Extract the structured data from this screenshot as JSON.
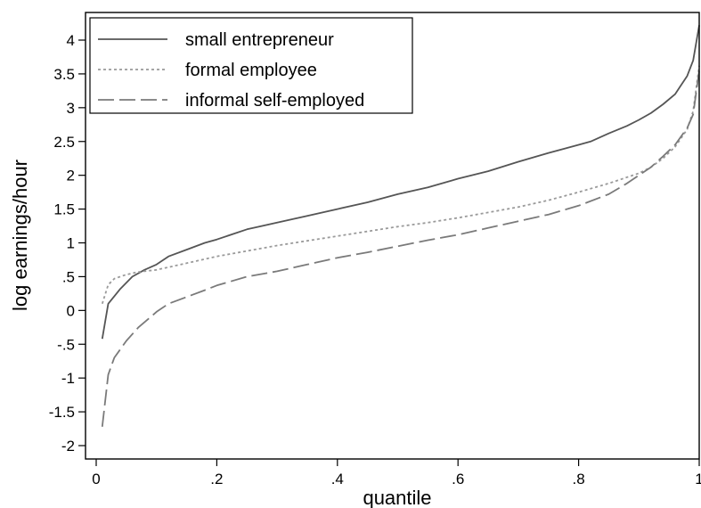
{
  "chart_data": {
    "type": "line",
    "xlabel": "quantile",
    "ylabel": "log earnings/hour",
    "xlim": [
      0,
      1
    ],
    "ylim": [
      -2.2,
      4.45
    ],
    "x_ticks": [
      0,
      0.2,
      0.4,
      0.6,
      0.8,
      1
    ],
    "x_tick_labels": [
      "0",
      ".2",
      ".4",
      ".6",
      ".8",
      "1"
    ],
    "y_ticks": [
      -2,
      -1.5,
      -1,
      -0.5,
      0,
      0.5,
      1,
      1.5,
      2,
      2.5,
      3,
      3.5,
      4
    ],
    "y_tick_labels": [
      "-2",
      "-1.5",
      "-1",
      "-.5",
      "0",
      ".5",
      "1",
      "1.5",
      "2",
      "2.5",
      "3",
      "3.5",
      "4"
    ],
    "grid": false,
    "legend_position": "top-left",
    "series": [
      {
        "name": "small entrepreneur",
        "style": "solid",
        "color": "#555555",
        "x": [
          0.01,
          0.02,
          0.04,
          0.06,
          0.08,
          0.1,
          0.12,
          0.15,
          0.18,
          0.2,
          0.25,
          0.3,
          0.35,
          0.4,
          0.45,
          0.5,
          0.55,
          0.6,
          0.65,
          0.7,
          0.75,
          0.8,
          0.82,
          0.85,
          0.88,
          0.9,
          0.92,
          0.94,
          0.96,
          0.98,
          0.99,
          1.0
        ],
        "y": [
          -0.42,
          0.1,
          0.32,
          0.5,
          0.6,
          0.68,
          0.8,
          0.9,
          1.0,
          1.05,
          1.2,
          1.3,
          1.4,
          1.5,
          1.6,
          1.72,
          1.82,
          1.95,
          2.06,
          2.2,
          2.33,
          2.45,
          2.5,
          2.62,
          2.73,
          2.82,
          2.92,
          3.05,
          3.2,
          3.47,
          3.7,
          4.22
        ]
      },
      {
        "name": "formal employee",
        "style": "dotted",
        "color": "#9a9a9a",
        "x": [
          0.01,
          0.02,
          0.03,
          0.05,
          0.07,
          0.1,
          0.15,
          0.2,
          0.25,
          0.3,
          0.35,
          0.4,
          0.45,
          0.5,
          0.55,
          0.6,
          0.65,
          0.7,
          0.75,
          0.8,
          0.85,
          0.9,
          0.92,
          0.94,
          0.96,
          0.98,
          0.99,
          1.0
        ],
        "y": [
          0.1,
          0.38,
          0.47,
          0.53,
          0.57,
          0.6,
          0.7,
          0.8,
          0.88,
          0.96,
          1.03,
          1.1,
          1.17,
          1.24,
          1.3,
          1.37,
          1.45,
          1.53,
          1.63,
          1.75,
          1.88,
          2.03,
          2.12,
          2.25,
          2.42,
          2.68,
          2.95,
          3.62
        ]
      },
      {
        "name": "informal self-employed",
        "style": "dashed",
        "color": "#7a7a7a",
        "x": [
          0.01,
          0.02,
          0.03,
          0.05,
          0.07,
          0.09,
          0.1,
          0.12,
          0.15,
          0.18,
          0.2,
          0.25,
          0.3,
          0.35,
          0.4,
          0.45,
          0.5,
          0.55,
          0.6,
          0.65,
          0.7,
          0.75,
          0.8,
          0.85,
          0.88,
          0.9,
          0.92,
          0.94,
          0.96,
          0.98,
          0.99,
          1.0
        ],
        "y": [
          -1.72,
          -0.95,
          -0.7,
          -0.45,
          -0.25,
          -0.1,
          -0.02,
          0.1,
          0.2,
          0.3,
          0.37,
          0.5,
          0.58,
          0.68,
          0.78,
          0.86,
          0.95,
          1.04,
          1.12,
          1.22,
          1.32,
          1.42,
          1.55,
          1.72,
          1.88,
          2.0,
          2.12,
          2.28,
          2.45,
          2.7,
          2.9,
          3.55
        ]
      }
    ]
  }
}
